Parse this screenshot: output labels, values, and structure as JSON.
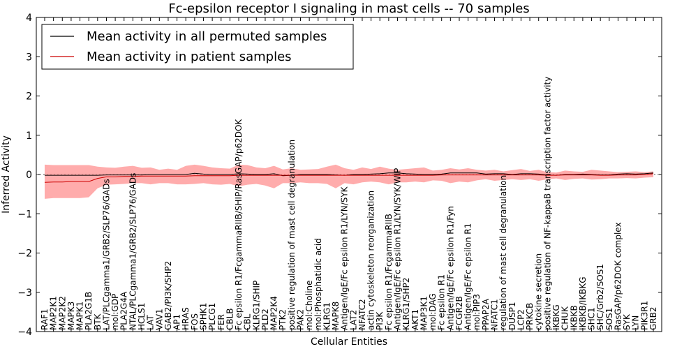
{
  "chart_data": {
    "type": "line",
    "title": "Fc-epsilon receptor I signaling in mast cells -- 70 samples",
    "xlabel": "Cellular Entities",
    "ylabel": "Inferred Activity",
    "ylim": [
      -4,
      4
    ],
    "yticks": [
      -4,
      -3,
      -2,
      -1,
      0,
      1,
      2,
      3,
      4
    ],
    "ytick_labels": [
      "−4",
      "−3",
      "−2",
      "−1",
      "0",
      "1",
      "2",
      "3",
      "4"
    ],
    "legend_position": "top-left",
    "zero_line": "dotted",
    "categories": [
      "RAF1",
      "MAP2K1",
      "MAP2K2",
      "MAPK3",
      "MAPK1",
      "PLA2G1B",
      "BTK",
      "LAT/PLCgamma1/GRB2/SLP76/GADs",
      "mol:GDP",
      "PLA2G4A",
      "NTAL/PLCgamma1/GRB2/SLP76/GADs",
      "HCLS1",
      "LAT",
      "VAV1",
      "GAB2/PI3K/SHP2",
      "AP1",
      "HRAS",
      "FOS",
      "SPHK1",
      "PLCG1",
      "FER",
      "CBLB",
      "Fc epsilon R1/FcgammaRIIB/SHIP/RasGAP/p62DOK",
      "CBL",
      "KLRG1/SHIP",
      "PLD2",
      "MAP2K4",
      "PTK2",
      "positive regulation of mast cell degranulation",
      "PAK2",
      "mol:Choline",
      "mol:Phosphatidic acid",
      "KLRG1",
      "MAPK8",
      "Antigen/IgE/Fc epsilon R1/LYN/SYK",
      "LAT2",
      "NFATC2",
      "actin cytoskeleton reorganization",
      "PI3K",
      "Fc epsilon R1/FcgammaRIIB",
      "Antigen/IgE/Fc epsilon R1/LYN/SYK/WIP",
      "KLRG1/SHP2",
      "AKT1",
      "MAP3K1",
      "mol:DAG",
      "Fc epsilon R1",
      "Antigen/IgE/Fc epsilon R1/Fyn",
      "FCGR2B",
      "Antigen/IgE/Fc epsilon R1",
      "mol:PIP3",
      "PPAP2A",
      "NFATC1",
      "regulation of mast cell degranulation",
      "DUSP1",
      "LCP2",
      "PRKCB",
      "cytokine secretion",
      "positive regulation of NF-kappaB transcription factor activity",
      "IKBKG",
      "CHUK",
      "IKBKB",
      "IKBKB/IKBKG",
      "SHC1",
      "SHC/Grb2/SOS1",
      "SOS1",
      "RasGAP/p62DOK complex",
      "SYK",
      "LYN",
      "PIK3R1",
      "GRB2"
    ],
    "series": [
      {
        "name": "Mean activity in all permuted samples",
        "color": "#000000",
        "values": [
          -0.02,
          -0.02,
          -0.02,
          -0.02,
          -0.02,
          -0.02,
          -0.02,
          -0.01,
          -0.01,
          -0.01,
          -0.01,
          -0.01,
          0.0,
          0.0,
          0.0,
          0.0,
          0.0,
          0.03,
          0.01,
          0.0,
          0.0,
          0.0,
          0.02,
          0.01,
          0.0,
          0.0,
          0.02,
          -0.03,
          -0.02,
          0.0,
          0.0,
          0.0,
          0.0,
          -0.01,
          -0.02,
          0.0,
          0.0,
          0.01,
          0.02,
          0.04,
          0.04,
          0.02,
          0.01,
          0.0,
          0.0,
          0.01,
          0.04,
          0.04,
          0.04,
          0.04,
          0.01,
          0.02,
          0.02,
          0.0,
          0.02,
          0.02,
          0.01,
          -0.01,
          -0.02,
          0.0,
          0.0,
          0.01,
          0.0,
          -0.01,
          -0.01,
          0.01,
          0.02,
          0.01,
          0.02,
          0.04
        ]
      },
      {
        "name": "Mean activity in patient samples",
        "color": "#cc0000",
        "band_color": "#ff9090",
        "values": [
          -0.2,
          -0.19,
          -0.19,
          -0.18,
          -0.18,
          -0.18,
          -0.1,
          -0.06,
          -0.06,
          -0.05,
          -0.05,
          -0.04,
          -0.04,
          -0.04,
          -0.04,
          -0.04,
          -0.04,
          -0.03,
          -0.03,
          -0.03,
          -0.03,
          -0.03,
          -0.02,
          -0.02,
          -0.02,
          -0.02,
          -0.02,
          -0.02,
          -0.02,
          -0.02,
          -0.02,
          -0.02,
          -0.02,
          -0.02,
          -0.02,
          -0.02,
          -0.02,
          -0.02,
          -0.02,
          -0.02,
          -0.02,
          -0.02,
          -0.02,
          -0.02,
          -0.02,
          -0.01,
          -0.01,
          -0.01,
          -0.01,
          -0.01,
          -0.01,
          -0.01,
          -0.01,
          -0.01,
          -0.01,
          -0.01,
          -0.01,
          -0.02,
          -0.02,
          -0.01,
          -0.01,
          -0.01,
          -0.01,
          -0.02,
          -0.02,
          -0.01,
          -0.01,
          -0.01,
          0.0,
          0.02
        ],
        "band_upper": [
          0.25,
          0.24,
          0.24,
          0.24,
          0.24,
          0.24,
          0.2,
          0.18,
          0.17,
          0.2,
          0.22,
          0.17,
          0.18,
          0.12,
          0.15,
          0.12,
          0.22,
          0.25,
          0.22,
          0.18,
          0.16,
          0.15,
          0.25,
          0.24,
          0.18,
          0.16,
          0.22,
          0.13,
          0.16,
          0.12,
          0.13,
          0.14,
          0.2,
          0.25,
          0.16,
          0.12,
          0.18,
          0.14,
          0.2,
          0.15,
          0.12,
          0.14,
          0.16,
          0.18,
          0.1,
          0.12,
          0.16,
          0.13,
          0.16,
          0.12,
          0.1,
          0.12,
          0.08,
          0.11,
          0.14,
          0.09,
          0.12,
          0.06,
          0.05,
          0.1,
          0.08,
          0.07,
          0.12,
          0.1,
          0.08,
          0.06,
          0.07,
          0.08,
          0.06,
          0.08
        ],
        "band_lower": [
          -0.62,
          -0.6,
          -0.6,
          -0.6,
          -0.6,
          -0.58,
          -0.35,
          -0.26,
          -0.25,
          -0.24,
          -0.22,
          -0.22,
          -0.25,
          -0.22,
          -0.22,
          -0.25,
          -0.25,
          -0.24,
          -0.22,
          -0.25,
          -0.26,
          -0.24,
          -0.3,
          -0.26,
          -0.24,
          -0.28,
          -0.35,
          -0.22,
          -0.22,
          -0.2,
          -0.22,
          -0.22,
          -0.24,
          -0.35,
          -0.22,
          -0.25,
          -0.2,
          -0.18,
          -0.2,
          -0.25,
          -0.2,
          -0.2,
          -0.18,
          -0.2,
          -0.15,
          -0.16,
          -0.22,
          -0.18,
          -0.2,
          -0.15,
          -0.12,
          -0.16,
          -0.14,
          -0.12,
          -0.14,
          -0.12,
          -0.16,
          -0.12,
          -0.1,
          -0.14,
          -0.11,
          -0.1,
          -0.13,
          -0.12,
          -0.1,
          -0.1,
          -0.09,
          -0.1,
          -0.08,
          -0.07
        ]
      }
    ]
  },
  "colors": {
    "axes": "#000000",
    "dotted_zero": "#555555"
  }
}
